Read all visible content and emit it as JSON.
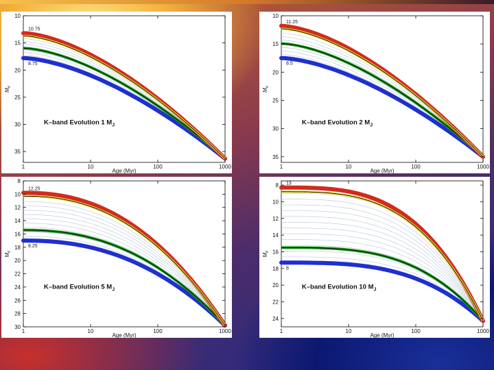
{
  "colors": {
    "top_track": "#d42a1e",
    "mid_track": "#1a9a1a",
    "bottom_track": "#1f2fd0",
    "highlight": "#f2e040",
    "line": "#000000",
    "grid_lines": "#b8c4d8"
  },
  "chart_data": [
    {
      "type": "line",
      "title_main": "K–band Evolution 1 M",
      "title_sub": "J",
      "xlabel": "Age (Myr)",
      "ylabel": "M",
      "ylabel_sub": "K",
      "xscale": "log",
      "xlim": [
        1,
        1000
      ],
      "ylim": [
        10,
        37
      ],
      "yinvert": true,
      "xticks": [
        "1",
        "10",
        "100",
        "1000"
      ],
      "yticks": [
        "10",
        "15",
        "20",
        "25",
        "30",
        "35"
      ],
      "yticks_values": [
        10,
        15,
        20,
        25,
        30,
        35
      ],
      "top_label": "10.75",
      "bottom_label": "8.75",
      "top_value": 13.2,
      "bottom_value": 17.8,
      "final_value": 36.3,
      "curvature": 1.6,
      "mid_fraction": 0.6,
      "num_grey_tracks": 8
    },
    {
      "type": "line",
      "title_main": "K–band Evolution 2 M",
      "title_sub": "J",
      "xlabel": "Age (Myr)",
      "ylabel": "M",
      "ylabel_sub": "K",
      "xscale": "log",
      "xlim": [
        1,
        1000
      ],
      "ylim": [
        10,
        36
      ],
      "yinvert": true,
      "xticks": [
        "1",
        "10",
        "100",
        "1000"
      ],
      "yticks": [
        "10",
        "15",
        "20",
        "25",
        "30",
        "35"
      ],
      "yticks_values": [
        10,
        15,
        20,
        25,
        30,
        35
      ],
      "top_label": "11.25",
      "bottom_label": "8.5",
      "top_value": 11.8,
      "bottom_value": 17.5,
      "final_value": 35.0,
      "curvature": 1.6,
      "mid_fraction": 0.55,
      "num_grey_tracks": 8
    },
    {
      "type": "line",
      "title_main": "K–band Evolution 5 M",
      "title_sub": "J",
      "xlabel": "Age (Myr)",
      "ylabel": "M",
      "ylabel_sub": "K",
      "xscale": "log",
      "xlim": [
        1,
        1000
      ],
      "ylim": [
        8,
        30
      ],
      "yinvert": true,
      "xticks": [
        "1",
        "10",
        "100",
        "1000"
      ],
      "yticks": [
        "8",
        "10",
        "12",
        "14",
        "16",
        "18",
        "20",
        "22",
        "24",
        "26",
        "28",
        "30"
      ],
      "yticks_values": [
        8,
        10,
        12,
        14,
        16,
        18,
        20,
        22,
        24,
        26,
        28,
        30
      ],
      "top_label": "12.25",
      "bottom_label": "8.25",
      "top_value": 9.8,
      "bottom_value": 17.0,
      "final_value": 29.8,
      "curvature": 2.3,
      "mid_fraction": 0.78,
      "num_grey_tracks": 10
    },
    {
      "type": "line",
      "title_main": "K–band Evolution 10 M",
      "title_sub": "J",
      "xlabel": "Age (Myr)",
      "ylabel": "M",
      "ylabel_sub": "K",
      "xscale": "log",
      "xlim": [
        1,
        1000
      ],
      "ylim": [
        7.5,
        25
      ],
      "yinvert": true,
      "xticks": [
        "1",
        "10",
        "100",
        "1000"
      ],
      "yticks": [
        "8",
        "10",
        "12",
        "14",
        "16",
        "18",
        "20",
        "22",
        "24"
      ],
      "yticks_values": [
        8,
        10,
        12,
        14,
        16,
        18,
        20,
        22,
        24
      ],
      "top_label": "13",
      "bottom_label": "8",
      "top_value": 8.3,
      "bottom_value": 17.3,
      "final_value": 24.3,
      "curvature": 3.2,
      "mid_fraction": 0.8,
      "num_grey_tracks": 12
    }
  ]
}
